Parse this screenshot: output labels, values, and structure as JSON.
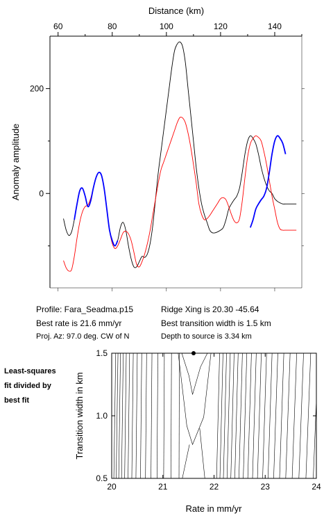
{
  "chart_data": [
    {
      "type": "line",
      "title": "",
      "xlabel": "Distance (km)",
      "ylabel": "Anomaly amplitude",
      "xlim": [
        57,
        150
      ],
      "ylim": [
        -180,
        300
      ],
      "x_ticks": [
        "60",
        "80",
        "100",
        "120",
        "140"
      ],
      "y_ticks": [
        "200",
        "0"
      ],
      "grid": false,
      "series": [
        {
          "name": "",
          "color": "#000000",
          "x": [
            62,
            63,
            64,
            65,
            66,
            67,
            68,
            69,
            70,
            71,
            72,
            73,
            74,
            75,
            76,
            77,
            78,
            79,
            80,
            81,
            82,
            83,
            84,
            85,
            86,
            87,
            88,
            89,
            90,
            91,
            92,
            93,
            94,
            95,
            96,
            97,
            98,
            99,
            100,
            101,
            102,
            103,
            104,
            105,
            106,
            107,
            108,
            109,
            110,
            111,
            112,
            113,
            114,
            115,
            116,
            117,
            118,
            119,
            120,
            121,
            122,
            123,
            124,
            125,
            126,
            127,
            128,
            129,
            130,
            131,
            132,
            133,
            134,
            135,
            136,
            137,
            138,
            139,
            140,
            141,
            142,
            143,
            144,
            145,
            146,
            147,
            148
          ],
          "y": [
            -48,
            -70,
            -80,
            -73,
            -50,
            -20,
            5,
            10,
            -5,
            -25,
            -15,
            10,
            30,
            40,
            35,
            10,
            -30,
            -70,
            -90,
            -100,
            -90,
            -65,
            -55,
            -70,
            -100,
            -125,
            -140,
            -140,
            -130,
            -120,
            -122,
            -115,
            -95,
            -60,
            -10,
            40,
            80,
            120,
            160,
            200,
            240,
            272,
            285,
            289,
            280,
            250,
            200,
            150,
            100,
            50,
            10,
            -20,
            -40,
            -55,
            -70,
            -75,
            -75,
            -73,
            -70,
            -65,
            -50,
            -30,
            -20,
            -12,
            -5,
            10,
            40,
            75,
            100,
            110,
            105,
            95,
            75,
            50,
            30,
            15,
            5,
            0,
            -10,
            -15,
            -18,
            -20,
            -20,
            -20,
            -20,
            -20,
            -20
          ]
        },
        {
          "name": "",
          "color": "#ff0000",
          "x": [
            62,
            63,
            64,
            65,
            66,
            67,
            68,
            69,
            70,
            71,
            72,
            73,
            74,
            75,
            76,
            77,
            78,
            79,
            80,
            81,
            82,
            83,
            84,
            85,
            86,
            87,
            88,
            89,
            90,
            91,
            92,
            93,
            94,
            95,
            96,
            97,
            98,
            99,
            100,
            101,
            102,
            103,
            104,
            105,
            106,
            107,
            108,
            109,
            110,
            111,
            112,
            113,
            114,
            115,
            116,
            117,
            118,
            119,
            120,
            121,
            122,
            123,
            124,
            125,
            126,
            127,
            128,
            129,
            130,
            131,
            132,
            133,
            134,
            135,
            136,
            137,
            138,
            139,
            140,
            141,
            142,
            143,
            144,
            145,
            146,
            147,
            148
          ],
          "y": [
            -128,
            -142,
            -148,
            -145,
            -120,
            -85,
            -55,
            -35,
            -25,
            -22,
            -10,
            10,
            30,
            40,
            35,
            10,
            -30,
            -70,
            -95,
            -105,
            -100,
            -88,
            -75,
            -72,
            -77,
            -90,
            -112,
            -135,
            -140,
            -130,
            -115,
            -95,
            -70,
            -40,
            -10,
            20,
            45,
            60,
            75,
            90,
            105,
            120,
            135,
            145,
            144,
            135,
            115,
            88,
            55,
            20,
            -20,
            -40,
            -50,
            -48,
            -42,
            -34,
            -26,
            -18,
            -10,
            -8,
            -12,
            -25,
            -40,
            -52,
            -56,
            -48,
            -15,
            30,
            70,
            95,
            105,
            110,
            107,
            100,
            80,
            55,
            25,
            -5,
            -30,
            -55,
            -68,
            -70,
            -70,
            -70,
            -70,
            -70,
            -70
          ]
        },
        {
          "name": "",
          "color": "#0000ff",
          "x": [
            66,
            67,
            68,
            69,
            70,
            71,
            72,
            73,
            74,
            75,
            76,
            77,
            78,
            79,
            80,
            81,
            82
          ],
          "y": [
            -50,
            -20,
            5,
            10,
            -5,
            -25,
            -15,
            10,
            30,
            40,
            35,
            10,
            -30,
            -70,
            -90,
            -100,
            -90
          ]
        },
        {
          "name": "",
          "color": "#0000ff",
          "x": [
            131,
            132,
            133,
            134,
            135,
            136,
            137,
            138,
            139,
            140,
            141,
            142,
            143,
            144
          ],
          "y": [
            -65,
            -50,
            -30,
            -20,
            -12,
            -5,
            10,
            40,
            75,
            100,
            110,
            105,
            95,
            75
          ]
        }
      ]
    },
    {
      "type": "contour",
      "title": "",
      "xlabel": "Rate in mm/yr",
      "ylabel": "Transition width in km",
      "xlim": [
        20,
        24
      ],
      "ylim": [
        0.5,
        1.5
      ],
      "x_ticks": [
        "20",
        "21",
        "22",
        "23",
        "24"
      ],
      "y_ticks": [
        "0.5",
        "1.0",
        "1.5"
      ],
      "grid": false,
      "best_fit_point": {
        "rate": 21.6,
        "width": 1.5
      }
    }
  ],
  "info": {
    "profile": "Profile: Fara_Seadma.p15",
    "best_rate": "Best rate is 21.6 mm/yr",
    "proj_az": "Proj. Az: 97.0 deg. CW of N",
    "ridge_xing": "Ridge Xing is 20.30 -45.64",
    "best_width": "Best transition width is 1.5 km",
    "depth": "Depth to source is   3.34 km"
  },
  "side_label": [
    "Least-squares",
    "fit divided by",
    "best fit"
  ]
}
